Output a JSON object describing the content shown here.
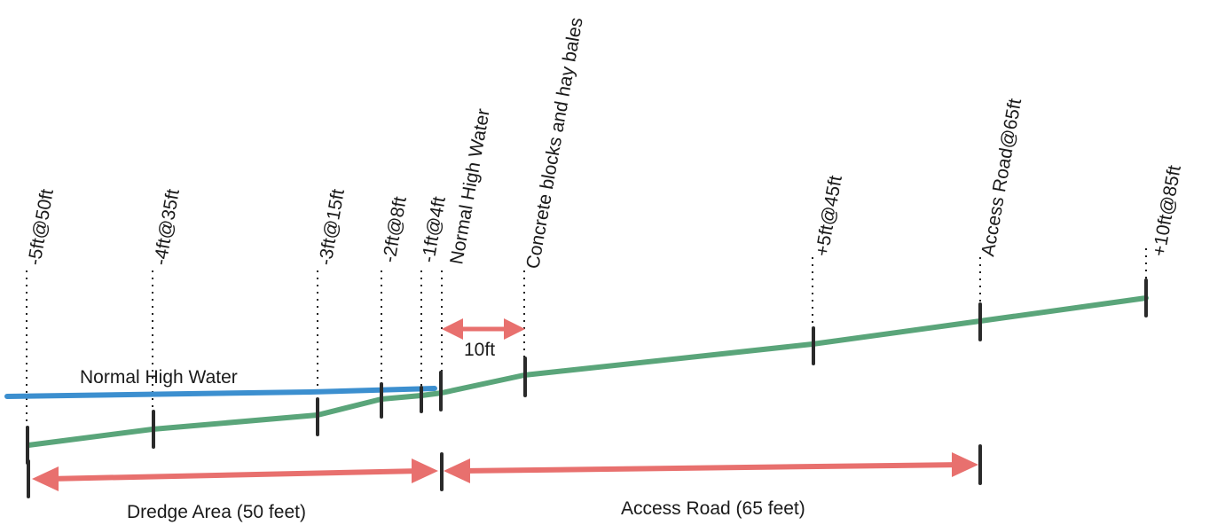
{
  "stations": [
    {
      "label": "-5ft@50ft"
    },
    {
      "label": "-4ft@35ft"
    },
    {
      "label": "-3ft@15ft"
    },
    {
      "label": "-2ft@8ft"
    },
    {
      "label": "-1ft@4ft"
    },
    {
      "label": "Normal High Water"
    },
    {
      "label": "Concrete blocks and hay bales"
    },
    {
      "label": "+5ft@45ft"
    },
    {
      "label": "Access Road@65ft"
    },
    {
      "label": "+10ft@85ft"
    }
  ],
  "water_label": "Normal High Water",
  "spacing_label": "10ft",
  "dredge_label": "Dredge Area (50 feet)",
  "road_label": "Access Road (65 feet)",
  "colors": {
    "ground": "#5aa57a",
    "water": "#3c8fcf",
    "arrow": "#e8706e",
    "tick": "#2a2a2a"
  }
}
